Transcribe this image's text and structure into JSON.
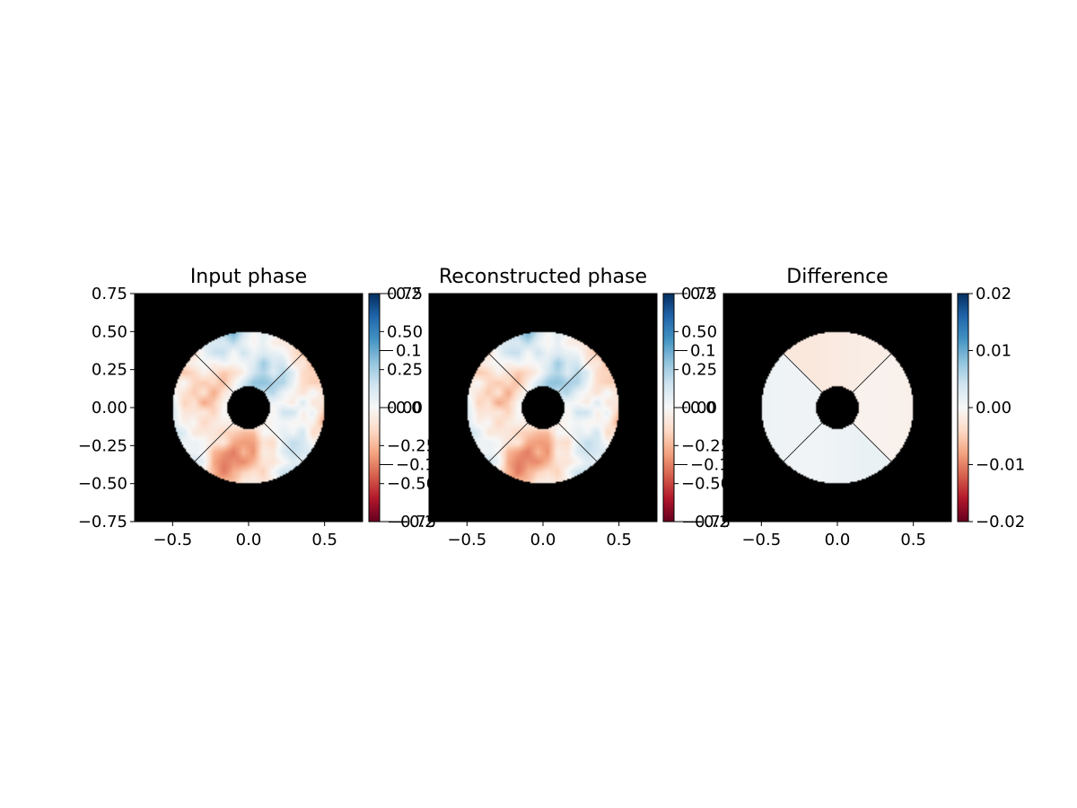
{
  "chart_data": [
    {
      "type": "heatmap",
      "title": "Input phase",
      "xlim": [
        -0.75,
        0.75
      ],
      "ylim": [
        -0.75,
        0.75
      ],
      "xticks": [
        -0.5,
        0.0,
        0.5
      ],
      "xtick_labels": [
        "−0.5",
        "0.0",
        "0.5"
      ],
      "yticks": [
        0.75,
        0.5,
        0.25,
        0.0,
        -0.25,
        -0.5,
        -0.75
      ],
      "ytick_labels": [
        "0.75",
        "0.50",
        "0.25",
        "0.00",
        "−0.25",
        "−0.50",
        "−0.75"
      ],
      "colormap": "RdBu",
      "pupil": {
        "outer_radius": 0.5,
        "inner_radius": 0.14,
        "spider_angles_deg": [
          45,
          135,
          225,
          315
        ]
      },
      "colorbar": {
        "range": [
          -0.2,
          0.2
        ],
        "label_sets": [
          {
            "ticks": [
              0.75,
              0.5,
              0.25,
              0.0,
              -0.25,
              -0.5,
              -0.75
            ],
            "labels": [
              "0.75",
              "0.50",
              "0.25",
              "0.00",
              "−0.25",
              "−0.50",
              "−0.75"
            ],
            "range": [
              -0.75,
              0.75
            ]
          },
          {
            "ticks": [
              0.2,
              0.1,
              0.0,
              -0.1,
              -0.2
            ],
            "labels": [
              "0.2",
              "0.1",
              "0.0",
              "−0.1",
              "−0.2"
            ],
            "range": [
              -0.2,
              0.2
            ]
          }
        ]
      },
      "field": {
        "seed": 11,
        "amplitude": 0.09,
        "modes": [
          {
            "kx": 2.2,
            "ky": 1.1,
            "a": 0.45,
            "p": 0.3
          },
          {
            "kx": -1.3,
            "ky": 2.6,
            "a": 0.35,
            "p": 1.7
          },
          {
            "kx": 4.1,
            "ky": -3.2,
            "a": 0.2,
            "p": 2.2
          },
          {
            "kx": 0.9,
            "ky": -1.8,
            "a": 0.3,
            "p": 4.0
          }
        ]
      }
    },
    {
      "type": "heatmap",
      "title": "Reconstructed phase",
      "xlim": [
        -0.75,
        0.75
      ],
      "ylim": [
        -0.75,
        0.75
      ],
      "xticks": [
        -0.5,
        0.0,
        0.5
      ],
      "xtick_labels": [
        "−0.5",
        "0.0",
        "0.5"
      ],
      "colormap": "RdBu",
      "pupil": {
        "outer_radius": 0.5,
        "inner_radius": 0.14,
        "spider_angles_deg": [
          45,
          135,
          225,
          315
        ]
      },
      "colorbar": {
        "range": [
          -0.2,
          0.2
        ],
        "label_sets": [
          {
            "ticks": [
              0.75,
              0.5,
              0.25,
              0.0,
              -0.25,
              -0.5,
              -0.75
            ],
            "labels": [
              "0.75",
              "0.50",
              "0.25",
              "0.00",
              "−0.25",
              "−0.50",
              "−0.75"
            ],
            "range": [
              -0.75,
              0.75
            ]
          },
          {
            "ticks": [
              0.2,
              0.1,
              0.0,
              -0.1,
              -0.2
            ],
            "labels": [
              "0.2",
              "0.1",
              "0.0",
              "−0.1",
              "−0.2"
            ],
            "range": [
              -0.2,
              0.2
            ]
          }
        ]
      },
      "field": {
        "seed": 11,
        "amplitude": 0.09,
        "modes": [
          {
            "kx": 2.2,
            "ky": 1.1,
            "a": 0.45,
            "p": 0.3
          },
          {
            "kx": -1.3,
            "ky": 2.6,
            "a": 0.35,
            "p": 1.7
          },
          {
            "kx": 4.1,
            "ky": -3.2,
            "a": 0.2,
            "p": 2.2
          },
          {
            "kx": 0.9,
            "ky": -1.8,
            "a": 0.3,
            "p": 4.0
          }
        ]
      }
    },
    {
      "type": "heatmap",
      "title": "Difference",
      "xlim": [
        -0.75,
        0.75
      ],
      "ylim": [
        -0.75,
        0.75
      ],
      "xticks": [
        -0.5,
        0.0,
        0.5
      ],
      "xtick_labels": [
        "−0.5",
        "0.0",
        "0.5"
      ],
      "colormap": "RdBu",
      "pupil": {
        "outer_radius": 0.5,
        "inner_radius": 0.14,
        "spider_angles_deg": [
          45,
          135,
          225,
          315
        ]
      },
      "colorbar": {
        "range": [
          -0.02,
          0.02
        ],
        "label_sets": [
          {
            "ticks": [
              0.02,
              0.01,
              0.0,
              -0.01,
              -0.02
            ],
            "labels": [
              "0.02",
              "0.01",
              "0.00",
              "−0.01",
              "−0.02"
            ],
            "range": [
              -0.02,
              0.02
            ]
          }
        ]
      },
      "field": {
        "seed": 0,
        "amplitude": 0.0,
        "segments": [
          {
            "from_deg": 45,
            "to_deg": 135,
            "value": -0.0018
          },
          {
            "from_deg": 135,
            "to_deg": 225,
            "value": 0.0012
          },
          {
            "from_deg": 225,
            "to_deg": 315,
            "value": 0.001
          },
          {
            "from_deg": 315,
            "to_deg": 405,
            "value": -0.0012
          }
        ]
      }
    }
  ]
}
